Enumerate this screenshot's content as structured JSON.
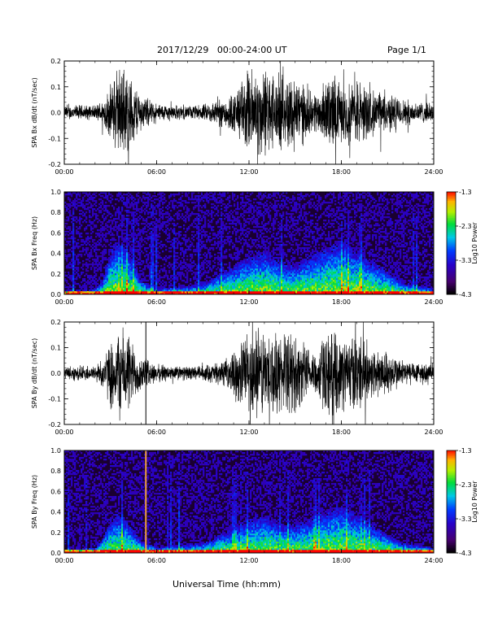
{
  "header": {
    "date_range": "2017/12/29   00:00-24:00 UT",
    "page": "Page 1/1"
  },
  "footer": {
    "xlabel": "Universal Time (hh:mm)"
  },
  "chart_data": [
    {
      "type": "line",
      "ylabel": "SPA Bx dB/dt (nT/sec)",
      "xlim": [
        "00:00",
        "24:00"
      ],
      "ylim": [
        -0.2,
        0.2
      ],
      "xticks": [
        "00:00",
        "06:00",
        "12:00",
        "18:00",
        "24:00"
      ],
      "yticks": [
        "-0.2",
        "-0.1",
        "0.0",
        "0.1",
        "0.2"
      ],
      "envelope": {
        "hours": [
          0,
          1,
          2,
          2.5,
          3,
          3.5,
          4,
          4.5,
          5,
          6,
          7,
          8,
          9,
          10,
          11,
          11.5,
          12,
          12.5,
          13,
          14,
          15,
          16,
          16.5,
          17,
          17.5,
          18,
          19,
          20,
          21,
          22,
          23,
          24
        ],
        "amplitude": [
          0.03,
          0.035,
          0.03,
          0.06,
          0.12,
          0.2,
          0.2,
          0.14,
          0.08,
          0.04,
          0.035,
          0.03,
          0.035,
          0.06,
          0.09,
          0.14,
          0.2,
          0.2,
          0.2,
          0.16,
          0.18,
          0.09,
          0.1,
          0.14,
          0.18,
          0.12,
          0.16,
          0.1,
          0.09,
          0.06,
          0.05,
          0.04
        ]
      }
    },
    {
      "type": "heatmap",
      "ylabel": "SPA Bx Freq (Hz)",
      "xlim": [
        "00:00",
        "24:00"
      ],
      "ylim": [
        0.0,
        1.0
      ],
      "xticks": [
        "00:00",
        "06:00",
        "12:00",
        "18:00",
        "24:00"
      ],
      "yticks": [
        "0.0",
        "0.2",
        "0.4",
        "0.6",
        "0.8",
        "1.0"
      ],
      "colorbar": {
        "label": "Log10 Power",
        "range": [
          -4.3,
          -1.3
        ],
        "ticks": [
          "-1.3",
          "-2.3",
          "-3.3",
          "-4.3"
        ]
      },
      "activity": {
        "hours": [
          0,
          2,
          2.5,
          3,
          3.5,
          4,
          5,
          6,
          9,
          10,
          11,
          11.5,
          12,
          13,
          14,
          15,
          16,
          17,
          18,
          19,
          20,
          21,
          22,
          24
        ],
        "extent_hz": [
          0.04,
          0.05,
          0.15,
          0.45,
          0.55,
          0.5,
          0.15,
          0.06,
          0.1,
          0.2,
          0.3,
          0.35,
          0.4,
          0.45,
          0.35,
          0.3,
          0.4,
          0.5,
          0.55,
          0.45,
          0.35,
          0.25,
          0.12,
          0.06
        ]
      }
    },
    {
      "type": "line",
      "ylabel": "SPA By dB/dt (nT/sec)",
      "xlim": [
        "00:00",
        "24:00"
      ],
      "ylim": [
        -0.2,
        0.2
      ],
      "xticks": [
        "00:00",
        "06:00",
        "12:00",
        "18:00",
        "24:00"
      ],
      "yticks": [
        "-0.2",
        "-0.1",
        "0.0",
        "0.1",
        "0.2"
      ],
      "envelope": {
        "hours": [
          0,
          1,
          2,
          2.5,
          3,
          3.5,
          4,
          4.5,
          5,
          6,
          7,
          8,
          9,
          10,
          10.5,
          11,
          11.5,
          12,
          12.5,
          13,
          14,
          15,
          16,
          16.5,
          17,
          18,
          19,
          20,
          21,
          22,
          23,
          24
        ],
        "amplitude": [
          0.03,
          0.035,
          0.035,
          0.07,
          0.14,
          0.2,
          0.2,
          0.13,
          0.08,
          0.04,
          0.035,
          0.03,
          0.035,
          0.05,
          0.06,
          0.1,
          0.15,
          0.2,
          0.2,
          0.2,
          0.17,
          0.18,
          0.1,
          0.12,
          0.2,
          0.16,
          0.18,
          0.12,
          0.1,
          0.06,
          0.05,
          0.04
        ]
      },
      "spike_hours": [
        5.3
      ]
    },
    {
      "type": "heatmap",
      "ylabel": "SPA By Freq (Hz)",
      "xlim": [
        "00:00",
        "24:00"
      ],
      "ylim": [
        0.0,
        1.0
      ],
      "xticks": [
        "00:00",
        "06:00",
        "12:00",
        "18:00",
        "24:00"
      ],
      "yticks": [
        "0.0",
        "0.2",
        "0.4",
        "0.6",
        "0.8",
        "1.0"
      ],
      "colorbar": {
        "label": "Log10 Power",
        "range": [
          -4.3,
          -1.3
        ],
        "ticks": [
          "-1.3",
          "-2.3",
          "-3.3",
          "-4.3"
        ]
      },
      "activity": {
        "hours": [
          0,
          2,
          2.5,
          3,
          3.5,
          4,
          5,
          6,
          9,
          10,
          11,
          11.5,
          12,
          13,
          14,
          15,
          16,
          17,
          18,
          19,
          20,
          21,
          22,
          24
        ],
        "extent_hz": [
          0.04,
          0.05,
          0.15,
          0.35,
          0.4,
          0.35,
          0.12,
          0.06,
          0.1,
          0.18,
          0.25,
          0.3,
          0.35,
          0.4,
          0.3,
          0.3,
          0.35,
          0.45,
          0.5,
          0.4,
          0.3,
          0.2,
          0.1,
          0.06
        ]
      },
      "vertical_line": {
        "hour": 5.3,
        "color": "#f0a040"
      }
    }
  ]
}
